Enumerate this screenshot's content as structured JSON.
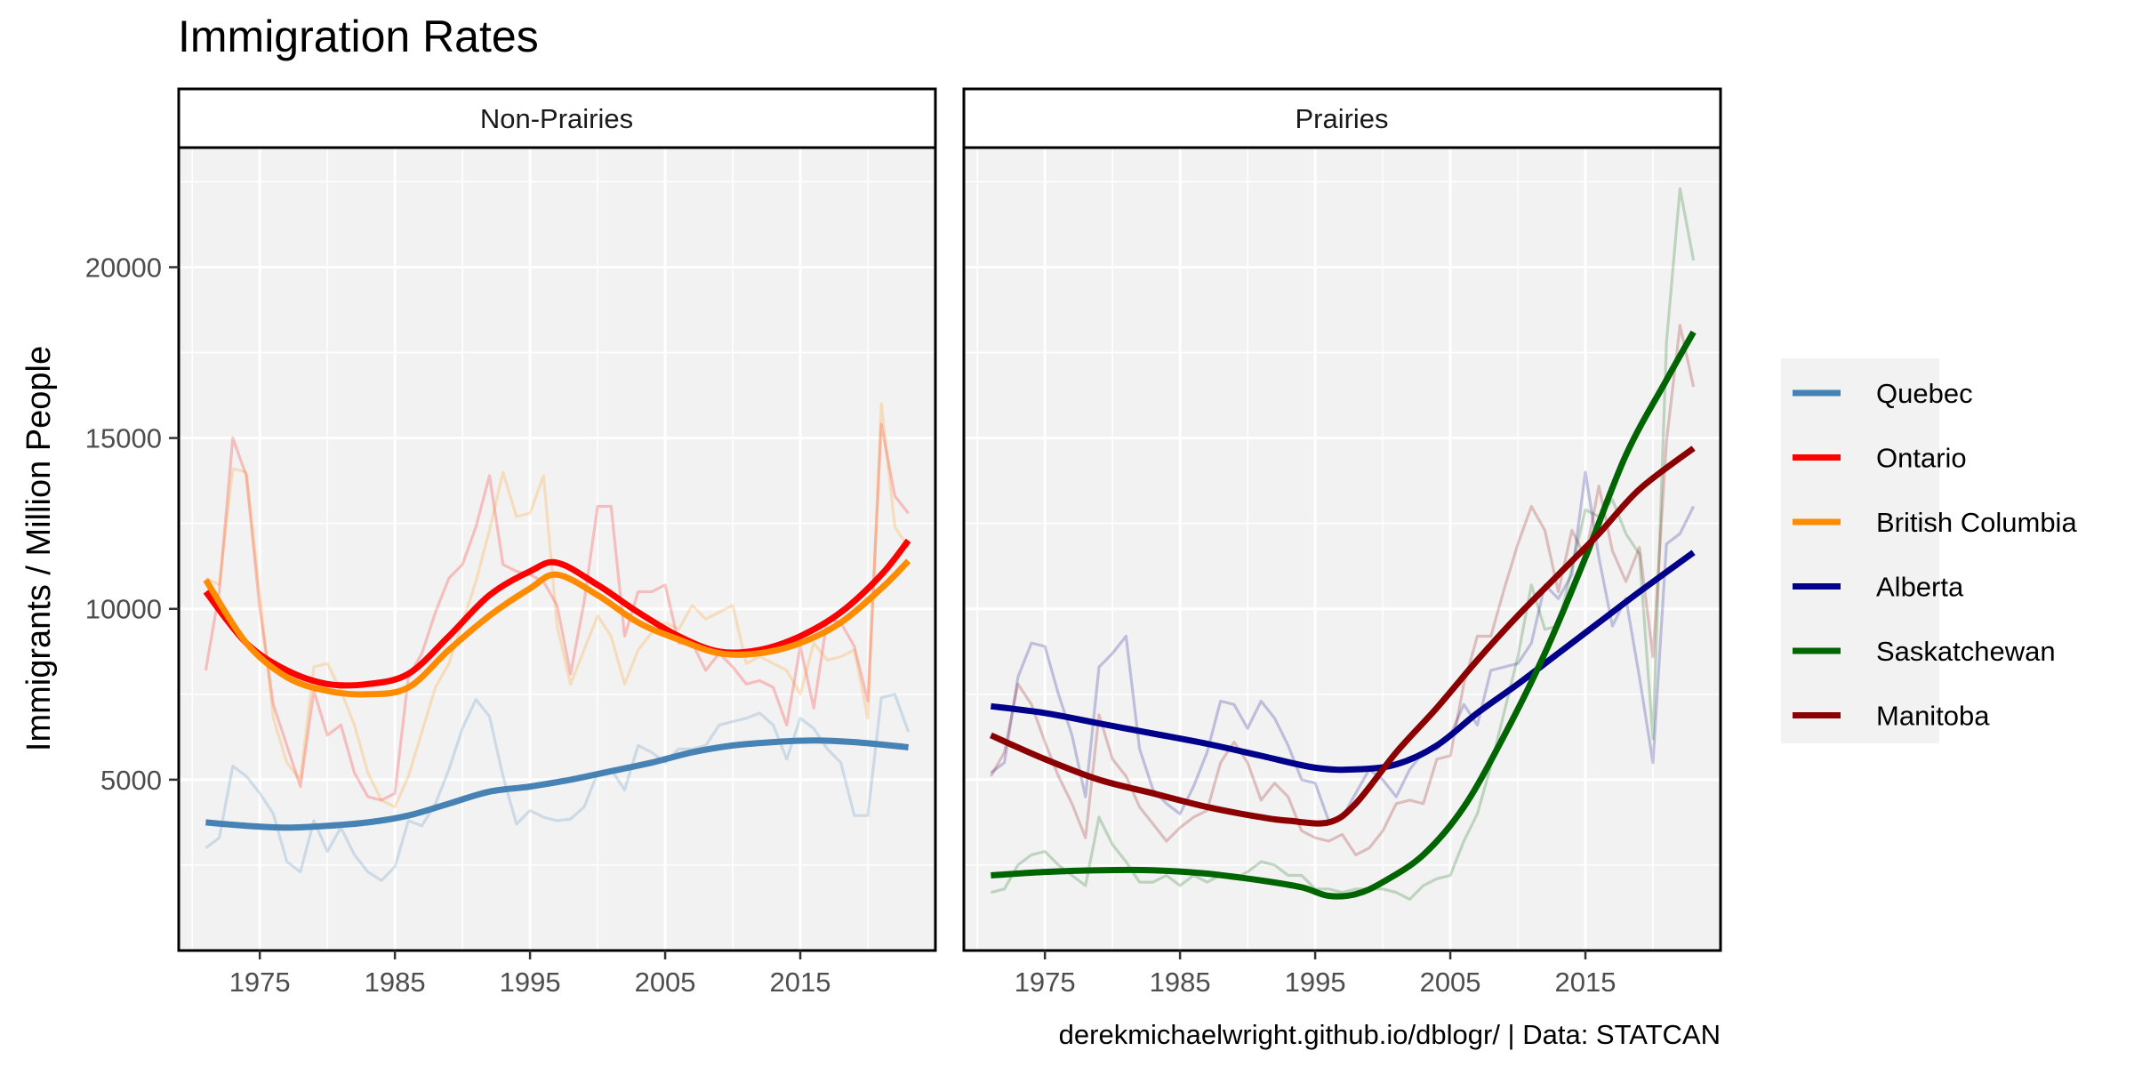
{
  "chart_data": {
    "type": "line",
    "title": "Immigration Rates",
    "ylabel": "Immigrants / Million People",
    "xlabel": "",
    "caption": "derekmichaelwright.github.io/dblogr/ | Data: STATCAN",
    "xlim": [
      1969,
      2025
    ],
    "ylim": [
      0,
      23500
    ],
    "xticks": [
      1975,
      1985,
      1995,
      2005,
      2015
    ],
    "yticks": [
      5000,
      10000,
      15000,
      20000
    ],
    "grid": true,
    "legend_position": "right",
    "legend": [
      {
        "name": "Quebec",
        "color": "#4682B4"
      },
      {
        "name": "Ontario",
        "color": "#FF0000"
      },
      {
        "name": "British Columbia",
        "color": "#FF8C00"
      },
      {
        "name": "Alberta",
        "color": "#00008B"
      },
      {
        "name": "Saskatchewan",
        "color": "#006400"
      },
      {
        "name": "Manitoba",
        "color": "#8B0000"
      }
    ],
    "panels": [
      {
        "label": "Non-Prairies",
        "series": [
          {
            "name": "Quebec",
            "color": "#4682B4",
            "x_raw": [
              1971,
              1972,
              1973,
              1974,
              1975,
              1976,
              1977,
              1978,
              1979,
              1980,
              1981,
              1982,
              1983,
              1984,
              1985,
              1986,
              1987,
              1988,
              1989,
              1990,
              1991,
              1992,
              1993,
              1994,
              1995,
              1996,
              1997,
              1998,
              1999,
              2000,
              2001,
              2002,
              2003,
              2004,
              2005,
              2006,
              2007,
              2008,
              2009,
              2010,
              2011,
              2012,
              2013,
              2014,
              2015,
              2016,
              2017,
              2018,
              2019,
              2020,
              2021,
              2022,
              2023
            ],
            "raw": [
              3000,
              3300,
              5400,
              5100,
              4600,
              4000,
              2600,
              2300,
              3800,
              2900,
              3600,
              2800,
              2300,
              2050,
              2450,
              3800,
              3650,
              4300,
              5300,
              6500,
              7350,
              6850,
              5100,
              3700,
              4100,
              3900,
              3800,
              3850,
              4200,
              5200,
              5300,
              4700,
              6000,
              5800,
              5500,
              5900,
              5900,
              6000,
              6600,
              6700,
              6800,
              6950,
              6600,
              5600,
              6800,
              6500,
              5900,
              5500,
              3950,
              3950,
              7400,
              7500,
              6400
            ],
            "smooth_x": [
              1971,
              1974,
              1977,
              1980,
              1983,
              1986,
              1989,
              1992,
              1995,
              1998,
              2001,
              2004,
              2007,
              2010,
              2013,
              2016,
              2019,
              2023
            ],
            "smooth": [
              3750,
              3650,
              3600,
              3650,
              3750,
              3950,
              4300,
              4650,
              4800,
              5000,
              5250,
              5500,
              5800,
              6000,
              6100,
              6150,
              6100,
              5950
            ]
          },
          {
            "name": "Ontario",
            "color": "#FF0000",
            "x_raw": [
              1971,
              1972,
              1973,
              1974,
              1975,
              1976,
              1977,
              1978,
              1979,
              1980,
              1981,
              1982,
              1983,
              1984,
              1985,
              1986,
              1987,
              1988,
              1989,
              1990,
              1991,
              1992,
              1993,
              1994,
              1995,
              1996,
              1997,
              1998,
              1999,
              2000,
              2001,
              2002,
              2003,
              2004,
              2005,
              2006,
              2007,
              2008,
              2009,
              2010,
              2011,
              2012,
              2013,
              2014,
              2015,
              2016,
              2017,
              2018,
              2019,
              2020,
              2021,
              2022,
              2023
            ],
            "raw": [
              8200,
              10500,
              15000,
              13900,
              10000,
              7200,
              6000,
              4800,
              7600,
              6300,
              6600,
              5200,
              4500,
              4400,
              4600,
              8000,
              8700,
              9900,
              10900,
              11300,
              12400,
              13900,
              11300,
              11100,
              11000,
              10800,
              10100,
              8100,
              10200,
              13000,
              13000,
              9200,
              10500,
              10500,
              10700,
              9000,
              9000,
              8200,
              8700,
              8300,
              7800,
              7900,
              7700,
              6600,
              8900,
              7100,
              9700,
              9600,
              8900,
              7300,
              15400,
              13300,
              12800
            ],
            "smooth_x": [
              1971,
              1974,
              1977,
              1980,
              1983,
              1986,
              1989,
              1992,
              1995,
              1997,
              2000,
              2003,
              2006,
              2009,
              2012,
              2015,
              2018,
              2021,
              2023
            ],
            "smooth": [
              10500,
              9000,
              8200,
              7800,
              7800,
              8100,
              9200,
              10400,
              11100,
              11350,
              10700,
              9900,
              9200,
              8750,
              8800,
              9200,
              9900,
              11000,
              12000
            ]
          },
          {
            "name": "British Columbia",
            "color": "#FF8C00",
            "x_raw": [
              1971,
              1972,
              1973,
              1974,
              1975,
              1976,
              1977,
              1978,
              1979,
              1980,
              1981,
              1982,
              1983,
              1984,
              1985,
              1986,
              1987,
              1988,
              1989,
              1990,
              1991,
              1992,
              1993,
              1994,
              1995,
              1996,
              1997,
              1998,
              1999,
              2000,
              2001,
              2002,
              2003,
              2004,
              2005,
              2006,
              2007,
              2008,
              2009,
              2010,
              2011,
              2012,
              2013,
              2014,
              2015,
              2016,
              2017,
              2018,
              2019,
              2020,
              2021,
              2022,
              2023
            ],
            "raw": [
              10900,
              10700,
              14100,
              14000,
              10400,
              6800,
              5500,
              5000,
              8300,
              8400,
              7600,
              6600,
              5200,
              4400,
              4200,
              5100,
              6400,
              7700,
              8400,
              9600,
              10800,
              12300,
              14000,
              12700,
              12800,
              13900,
              9500,
              7800,
              8800,
              9800,
              9200,
              7800,
              8800,
              9300,
              9600,
              9400,
              10100,
              9700,
              9900,
              10100,
              8400,
              8600,
              8400,
              8200,
              7500,
              9000,
              8500,
              8600,
              8800,
              6800,
              16000,
              12400,
              11800
            ],
            "smooth_x": [
              1971,
              1974,
              1977,
              1980,
              1983,
              1986,
              1989,
              1992,
              1995,
              1997,
              2000,
              2003,
              2006,
              2009,
              2012,
              2015,
              2018,
              2021,
              2023
            ],
            "smooth": [
              10850,
              9000,
              8000,
              7600,
              7500,
              7700,
              8800,
              9800,
              10600,
              11000,
              10400,
              9600,
              9100,
              8700,
              8700,
              9000,
              9600,
              10600,
              11400
            ]
          }
        ]
      },
      {
        "label": "Prairies",
        "series": [
          {
            "name": "Alberta",
            "color": "#00008B",
            "x_raw": [
              1971,
              1972,
              1973,
              1974,
              1975,
              1976,
              1977,
              1978,
              1979,
              1980,
              1981,
              1982,
              1983,
              1984,
              1985,
              1986,
              1987,
              1988,
              1989,
              1990,
              1991,
              1992,
              1993,
              1994,
              1995,
              1996,
              1997,
              1998,
              1999,
              2000,
              2001,
              2002,
              2003,
              2004,
              2005,
              2006,
              2007,
              2008,
              2009,
              2010,
              2011,
              2012,
              2013,
              2014,
              2015,
              2016,
              2017,
              2018,
              2019,
              2020,
              2021,
              2022,
              2023
            ],
            "raw": [
              5200,
              5500,
              8000,
              9000,
              8900,
              7500,
              6300,
              4500,
              8300,
              8700,
              9200,
              5900,
              4700,
              4300,
              4000,
              4800,
              5800,
              7300,
              7200,
              6500,
              7300,
              6800,
              6000,
              5000,
              4900,
              3800,
              3900,
              4600,
              5300,
              5000,
              4500,
              5300,
              5800,
              5900,
              6300,
              7200,
              6600,
              8200,
              8300,
              8400,
              9000,
              10700,
              10300,
              11000,
              14000,
              11500,
              9500,
              10300,
              8000,
              5500,
              11900,
              12200,
              13000
            ],
            "smooth_x": [
              1971,
              1975,
              1979,
              1983,
              1987,
              1991,
              1995,
              1998,
              2001,
              2004,
              2007,
              2010,
              2013,
              2016,
              2019,
              2023
            ],
            "smooth": [
              7150,
              6950,
              6650,
              6350,
              6050,
              5700,
              5350,
              5300,
              5450,
              6000,
              6950,
              7800,
              8700,
              9600,
              10500,
              11650
            ]
          },
          {
            "name": "Saskatchewan",
            "color": "#006400",
            "x_raw": [
              1971,
              1972,
              1973,
              1974,
              1975,
              1976,
              1977,
              1978,
              1979,
              1980,
              1981,
              1982,
              1983,
              1984,
              1985,
              1986,
              1987,
              1988,
              1989,
              1990,
              1991,
              1992,
              1993,
              1994,
              1995,
              1996,
              1997,
              1998,
              1999,
              2000,
              2001,
              2002,
              2003,
              2004,
              2005,
              2006,
              2007,
              2008,
              2009,
              2010,
              2011,
              2012,
              2013,
              2014,
              2015,
              2016,
              2017,
              2018,
              2019,
              2020,
              2021,
              2022,
              2023
            ],
            "raw": [
              1700,
              1800,
              2500,
              2800,
              2900,
              2500,
              2200,
              1900,
              3900,
              3100,
              2600,
              2000,
              2000,
              2200,
              1900,
              2200,
              2000,
              2200,
              2100,
              2300,
              2600,
              2500,
              2200,
              2200,
              1800,
              1800,
              1700,
              1800,
              1800,
              1800,
              1700,
              1500,
              1900,
              2100,
              2200,
              3200,
              4000,
              5400,
              7000,
              8600,
              10700,
              9400,
              9500,
              11200,
              12900,
              12700,
              13200,
              12200,
              11600,
              6200,
              17800,
              22300,
              20200
            ],
            "smooth_x": [
              1971,
              1975,
              1979,
              1983,
              1987,
              1991,
              1994,
              1996,
              1998,
              2000,
              2003,
              2006,
              2009,
              2012,
              2015,
              2018,
              2021,
              2023
            ],
            "smooth": [
              2200,
              2300,
              2350,
              2350,
              2250,
              2050,
              1850,
              1600,
              1650,
              2000,
              2800,
              4200,
              6300,
              8700,
              11500,
              14500,
              16700,
              18100
            ]
          },
          {
            "name": "Manitoba",
            "color": "#8B0000",
            "x_raw": [
              1971,
              1972,
              1973,
              1974,
              1975,
              1976,
              1977,
              1978,
              1979,
              1980,
              1981,
              1982,
              1983,
              1984,
              1985,
              1986,
              1987,
              1988,
              1989,
              1990,
              1991,
              1992,
              1993,
              1994,
              1995,
              1996,
              1997,
              1998,
              1999,
              2000,
              2001,
              2002,
              2003,
              2004,
              2005,
              2006,
              2007,
              2008,
              2009,
              2010,
              2011,
              2012,
              2013,
              2014,
              2015,
              2016,
              2017,
              2018,
              2019,
              2020,
              2021,
              2022,
              2023
            ],
            "raw": [
              5100,
              5800,
              7800,
              7200,
              6100,
              5100,
              4300,
              3300,
              6900,
              5600,
              5100,
              4200,
              3700,
              3200,
              3600,
              3900,
              4100,
              5500,
              6100,
              5500,
              4400,
              4900,
              4500,
              3500,
              3300,
              3200,
              3400,
              2800,
              3000,
              3500,
              4300,
              4400,
              4300,
              5600,
              5700,
              7800,
              9200,
              9200,
              10600,
              11900,
              13000,
              12300,
              10500,
              12300,
              11500,
              13600,
              11700,
              10800,
              11800,
              8600,
              14900,
              18300,
              16500
            ],
            "smooth_x": [
              1971,
              1975,
              1979,
              1983,
              1987,
              1991,
              1993,
              1996,
              1998,
              2001,
              2004,
              2007,
              2010,
              2013,
              2016,
              2019,
              2023
            ],
            "smooth": [
              6300,
              5600,
              5000,
              4600,
              4200,
              3900,
              3800,
              3750,
              4300,
              5800,
              7100,
              8500,
              9800,
              11000,
              12200,
              13500,
              14700
            ]
          }
        ]
      }
    ]
  }
}
